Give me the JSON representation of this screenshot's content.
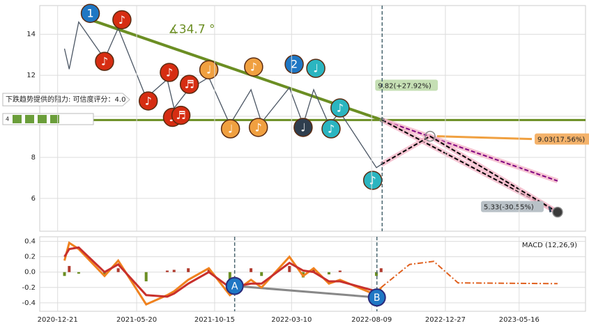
{
  "chart_data": [
    {
      "type": "line",
      "xlim": [
        "2020-11-17",
        "2023-09-19"
      ],
      "ylim": [
        4.4,
        15.4
      ],
      "yticks": [
        6,
        8,
        10,
        12,
        14
      ],
      "grid": true,
      "series": [
        {
          "color": "#4a5563",
          "x": [
            "2021-01-03",
            "2021-01-12",
            "2021-01-30",
            "2021-03-20",
            "2021-04-15",
            "2021-06-07",
            "2021-07-17",
            "2021-07-30",
            "2021-08-26",
            "2021-10-04",
            "2021-11-13",
            "2021-12-23",
            "2022-01-12",
            "2022-03-06",
            "2022-04-01",
            "2022-04-21",
            "2022-05-20",
            "2022-06-10",
            "2022-08-18",
            "2022-08-27"
          ],
          "values": [
            13.3,
            12.3,
            14.6,
            12.8,
            14.3,
            10.9,
            11.8,
            10.4,
            11.3,
            11.9,
            9.6,
            11.3,
            9.7,
            11.4,
            9.6,
            11.3,
            9.6,
            10.2,
            7.5,
            7.65
          ]
        }
      ],
      "trendline": {
        "color": "#6b8e23",
        "x": [
          "2021-02-21",
          "2022-08-29"
        ],
        "values": [
          14.71,
          9.82
        ]
      },
      "angle_label": "∡34.7 °",
      "resistance_label": "下跌趋势提供的阻力: 可信度评分：4.0",
      "score": "4",
      "support": {
        "value": 9.82,
        "color": "#6b8e23"
      },
      "targets": [
        {
          "x": "2022-08-29",
          "value": 9.82,
          "label": "9.82(+27.92%)",
          "color": "#c5dfb4"
        },
        {
          "x": "2022-11-28",
          "value": 9.03,
          "label": "9.03(17.56%)",
          "color": "#f4b26a"
        },
        {
          "x": "2023-07-28",
          "value": 5.33,
          "label": "5.33(-30.55%)",
          "color": "#b9c1c7"
        }
      ],
      "projections": [
        {
          "color": "#800080",
          "x": [
            "2022-08-29",
            "2023-07-28"
          ],
          "values": [
            9.82,
            6.85
          ]
        },
        {
          "color": "#000000",
          "x": [
            "2022-08-29",
            "2023-07-28"
          ],
          "values": [
            9.82,
            5.33
          ]
        },
        {
          "color": "#000000",
          "x": [
            "2022-08-27",
            "2022-11-28",
            "2023-07-28"
          ],
          "values": [
            7.65,
            9.03,
            5.33
          ]
        }
      ],
      "markers": [
        {
          "label": "1",
          "color": "#1f77c4",
          "x": "2021-02-21",
          "value": 15.02
        },
        {
          "label": "♪",
          "color": "#d62d12",
          "x": "2021-04-22",
          "value": 14.71
        },
        {
          "label": "♪",
          "color": "#d62d12",
          "x": "2021-03-20",
          "value": 12.68
        },
        {
          "label": "♪",
          "color": "#d62d12",
          "x": "2021-06-11",
          "value": 10.75
        },
        {
          "label": "♪",
          "color": "#d62d12",
          "x": "2021-07-21",
          "value": 12.14
        },
        {
          "label": "♬",
          "color": "#d62d12",
          "x": "2021-08-28",
          "value": 11.56
        },
        {
          "label": "♪",
          "color": "#d62d12",
          "x": "2021-07-27",
          "value": 9.95
        },
        {
          "label": "♬",
          "color": "#d62d12",
          "x": "2021-08-12",
          "value": 10.05
        },
        {
          "label": "♩",
          "color": "#f0a040",
          "x": "2021-10-04",
          "value": 12.27
        },
        {
          "label": "♩",
          "color": "#f0a040",
          "x": "2021-11-14",
          "value": 9.39
        },
        {
          "label": "♪",
          "color": "#f0a040",
          "x": "2021-12-28",
          "value": 12.41
        },
        {
          "label": "♪",
          "color": "#f0a040",
          "x": "2022-01-06",
          "value": 9.46
        },
        {
          "label": "2",
          "color": "#1f77c4",
          "x": "2022-03-15",
          "value": 12.54
        },
        {
          "label": "♩",
          "color": "#2f3e4e",
          "x": "2022-04-01",
          "value": 9.46
        },
        {
          "label": "♩",
          "color": "#2bb5c0",
          "x": "2022-04-25",
          "value": 12.34
        },
        {
          "label": "♪",
          "color": "#2bb5c0",
          "x": "2022-05-24",
          "value": 9.39
        },
        {
          "label": "♪",
          "color": "#2bb5c0",
          "x": "2022-06-10",
          "value": 10.41
        },
        {
          "label": "♪",
          "color": "#2bb5c0",
          "x": "2022-08-11",
          "value": 6.88
        }
      ]
    },
    {
      "type": "line",
      "title": "MACD (12,26,9)",
      "xlim": [
        "2020-11-17",
        "2023-09-19"
      ],
      "ylim": [
        -0.51,
        0.46
      ],
      "yticks": [
        -0.4,
        -0.2,
        {
          "value": 0,
          "label": "0.0"
        },
        0.2,
        0.4
      ],
      "grid": true,
      "xticks": [
        "2020-12-21",
        "2021-05-20",
        "2021-10-15",
        "2022-03-10",
        "2022-08-09",
        "2022-12-27",
        "2023-05-16"
      ],
      "x": [
        "2021-01-03",
        "2021-01-12",
        "2021-01-30",
        "2021-03-20",
        "2021-04-15",
        "2021-06-07",
        "2021-07-17",
        "2021-07-30",
        "2021-08-26",
        "2021-10-04",
        "2021-11-13",
        "2021-12-23",
        "2022-01-12",
        "2022-03-06",
        "2022-04-01",
        "2022-04-21",
        "2022-05-20",
        "2022-06-10",
        "2022-08-18",
        "2022-08-27"
      ],
      "series": [
        {
          "color": "#f0821e",
          "values": [
            0.15,
            0.38,
            0.3,
            -0.05,
            0.15,
            -0.42,
            -0.3,
            -0.25,
            -0.1,
            0.05,
            -0.3,
            -0.1,
            -0.2,
            0.2,
            -0.05,
            0.05,
            -0.15,
            -0.1,
            -0.3,
            -0.2
          ]
        },
        {
          "color": "#c8302c",
          "values": [
            0.2,
            0.3,
            0.32,
            0.0,
            0.1,
            -0.3,
            -0.32,
            -0.28,
            -0.15,
            0.0,
            -0.2,
            -0.15,
            -0.15,
            0.12,
            0.02,
            0.0,
            -0.12,
            -0.12,
            -0.25,
            -0.25
          ]
        }
      ],
      "histogram": {
        "colors": [
          "#b03a2e",
          "#6b8e23"
        ],
        "values": [
          -0.05,
          0.08,
          -0.02,
          -0.05,
          0.05,
          -0.12,
          0.02,
          0.03,
          0.05,
          0.05,
          -0.1,
          0.05,
          -0.05,
          0.08,
          -0.07,
          0.05,
          -0.03,
          0.02,
          -0.05,
          0.05
        ]
      },
      "projection": {
        "color": "#e0601e",
        "x": [
          "2022-08-27",
          "2022-10-20",
          "2022-12-05",
          "2023-01-20",
          "2023-07-28"
        ],
        "values": [
          -0.2,
          0.1,
          0.14,
          -0.14,
          -0.15
        ]
      },
      "points": [
        {
          "label": "A",
          "x": "2021-11-22",
          "value": -0.18
        },
        {
          "label": "B",
          "x": "2022-08-19",
          "value": -0.33
        }
      ]
    }
  ]
}
